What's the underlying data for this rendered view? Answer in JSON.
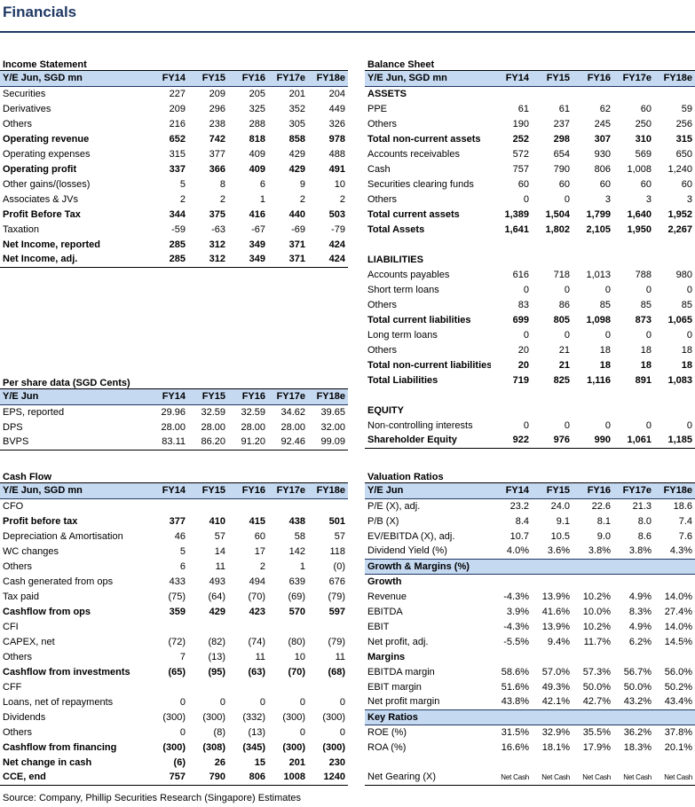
{
  "title": "Financials",
  "income": {
    "title": "Income Statement",
    "header": [
      "Y/E Jun, SGD mn",
      "FY14",
      "FY15",
      "FY16",
      "FY17e",
      "FY18e"
    ],
    "rows": [
      {
        "label": "Securities",
        "values": [
          "227",
          "209",
          "205",
          "201",
          "204"
        ]
      },
      {
        "label": "Derivatives",
        "values": [
          "209",
          "296",
          "325",
          "352",
          "449"
        ]
      },
      {
        "label": "Others",
        "values": [
          "216",
          "238",
          "288",
          "305",
          "326"
        ]
      },
      {
        "label": "Operating revenue",
        "values": [
          "652",
          "742",
          "818",
          "858",
          "978"
        ],
        "bold": true
      },
      {
        "label": "Operating expenses",
        "values": [
          "315",
          "377",
          "409",
          "429",
          "488"
        ]
      },
      {
        "label": "Operating profit",
        "values": [
          "337",
          "366",
          "409",
          "429",
          "491"
        ],
        "bold": true
      },
      {
        "label": "Other gains/(losses)",
        "values": [
          "5",
          "8",
          "6",
          "9",
          "10"
        ]
      },
      {
        "label": "Associates & JVs",
        "values": [
          "2",
          "2",
          "1",
          "2",
          "2"
        ]
      },
      {
        "label": "Profit Before Tax",
        "values": [
          "344",
          "375",
          "416",
          "440",
          "503"
        ],
        "bold": true
      },
      {
        "label": "Taxation",
        "values": [
          "-59",
          "-63",
          "-67",
          "-69",
          "-79"
        ]
      },
      {
        "label": "Net Income, reported",
        "values": [
          "285",
          "312",
          "349",
          "371",
          "424"
        ],
        "bold": true
      },
      {
        "label": "Net Income, adj.",
        "values": [
          "285",
          "312",
          "349",
          "371",
          "424"
        ],
        "bold": true
      }
    ]
  },
  "per_share": {
    "title": "Per share data (SGD Cents)",
    "header": [
      "Y/E Jun",
      "FY14",
      "FY15",
      "FY16",
      "FY17e",
      "FY18e"
    ],
    "rows": [
      {
        "label": "EPS, reported",
        "values": [
          "29.96",
          "32.59",
          "32.59",
          "34.62",
          "39.65"
        ]
      },
      {
        "label": "DPS",
        "values": [
          "28.00",
          "28.00",
          "28.00",
          "28.00",
          "32.00"
        ]
      },
      {
        "label": "BVPS",
        "values": [
          "83.11",
          "86.20",
          "91.20",
          "92.46",
          "99.09"
        ]
      }
    ]
  },
  "cash_flow": {
    "title": "Cash Flow",
    "header": [
      "Y/E Jun, SGD mn",
      "FY14",
      "FY15",
      "FY16",
      "FY17e",
      "FY18e"
    ],
    "rows": [
      {
        "label": "CFO",
        "values": [
          "",
          "",
          "",
          "",
          ""
        ]
      },
      {
        "label": "Profit before tax",
        "values": [
          "377",
          "410",
          "415",
          "438",
          "501"
        ],
        "bold": true
      },
      {
        "label": "Depreciation & Amortisation",
        "values": [
          "46",
          "57",
          "60",
          "58",
          "57"
        ]
      },
      {
        "label": "WC changes",
        "values": [
          "5",
          "14",
          "17",
          "142",
          "118"
        ]
      },
      {
        "label": "Others",
        "values": [
          "6",
          "11",
          "2",
          "1",
          "(0)"
        ]
      },
      {
        "label": "Cash generated from ops",
        "values": [
          "433",
          "493",
          "494",
          "639",
          "676"
        ]
      },
      {
        "label": "Tax paid",
        "values": [
          "(75)",
          "(64)",
          "(70)",
          "(69)",
          "(79)"
        ]
      },
      {
        "label": "Cashflow from ops",
        "values": [
          "359",
          "429",
          "423",
          "570",
          "597"
        ],
        "bold": true
      },
      {
        "label": "CFI",
        "values": [
          "",
          "",
          "",
          "",
          ""
        ]
      },
      {
        "label": "CAPEX, net",
        "values": [
          "(72)",
          "(82)",
          "(74)",
          "(80)",
          "(79)"
        ]
      },
      {
        "label": "Others",
        "values": [
          "7",
          "(13)",
          "11",
          "10",
          "11"
        ]
      },
      {
        "label": "Cashflow from investments",
        "values": [
          "(65)",
          "(95)",
          "(63)",
          "(70)",
          "(68)"
        ],
        "bold": true
      },
      {
        "label": "CFF",
        "values": [
          "",
          "",
          "",
          "",
          ""
        ]
      },
      {
        "label": "Loans, net of repayments",
        "values": [
          "0",
          "0",
          "0",
          "0",
          "0"
        ]
      },
      {
        "label": "Dividends",
        "values": [
          "(300)",
          "(300)",
          "(332)",
          "(300)",
          "(300)"
        ]
      },
      {
        "label": "Others",
        "values": [
          "0",
          "(8)",
          "(13)",
          "0",
          "0"
        ]
      },
      {
        "label": "Cashflow from financing",
        "values": [
          "(300)",
          "(308)",
          "(345)",
          "(300)",
          "(300)"
        ],
        "bold": true
      },
      {
        "label": "Net change in cash",
        "values": [
          "(6)",
          "26",
          "15",
          "201",
          "230"
        ],
        "bold": true
      },
      {
        "label": "CCE, end",
        "values": [
          "757",
          "790",
          "806",
          "1008",
          "1240"
        ],
        "bold": true
      }
    ]
  },
  "balance": {
    "title": "Balance Sheet",
    "header": [
      "Y/E Jun, SGD mn",
      "FY14",
      "FY15",
      "FY16",
      "FY17e",
      "FY18e"
    ],
    "rows": [
      {
        "label": "ASSETS",
        "values": [
          "",
          "",
          "",
          "",
          ""
        ],
        "bold": true
      },
      {
        "label": "PPE",
        "values": [
          "61",
          "61",
          "62",
          "60",
          "59"
        ]
      },
      {
        "label": "Others",
        "values": [
          "190",
          "237",
          "245",
          "250",
          "256"
        ]
      },
      {
        "label": "Total non-current assets",
        "values": [
          "252",
          "298",
          "307",
          "310",
          "315"
        ],
        "bold": true
      },
      {
        "label": "Accounts receivables",
        "values": [
          "572",
          "654",
          "930",
          "569",
          "650"
        ]
      },
      {
        "label": "Cash",
        "values": [
          "757",
          "790",
          "806",
          "1,008",
          "1,240"
        ]
      },
      {
        "label": "Securities clearing funds",
        "values": [
          "60",
          "60",
          "60",
          "60",
          "60"
        ]
      },
      {
        "label": "Others",
        "values": [
          "0",
          "0",
          "3",
          "3",
          "3"
        ]
      },
      {
        "label": "Total current assets",
        "values": [
          "1,389",
          "1,504",
          "1,799",
          "1,640",
          "1,952"
        ],
        "bold": true
      },
      {
        "label": "Total Assets",
        "values": [
          "1,641",
          "1,802",
          "2,105",
          "1,950",
          "2,267"
        ],
        "bold": true
      },
      {
        "label": "",
        "values": [
          "",
          "",
          "",
          "",
          ""
        ]
      },
      {
        "label": "LIABILITIES",
        "values": [
          "",
          "",
          "",
          "",
          ""
        ],
        "bold": true
      },
      {
        "label": "Accounts payables",
        "values": [
          "616",
          "718",
          "1,013",
          "788",
          "980"
        ]
      },
      {
        "label": "Short term loans",
        "values": [
          "0",
          "0",
          "0",
          "0",
          "0"
        ]
      },
      {
        "label": "Others",
        "values": [
          "83",
          "86",
          "85",
          "85",
          "85"
        ]
      },
      {
        "label": "Total current liabilities",
        "values": [
          "699",
          "805",
          "1,098",
          "873",
          "1,065"
        ],
        "bold": true
      },
      {
        "label": "Long term loans",
        "values": [
          "0",
          "0",
          "0",
          "0",
          "0"
        ]
      },
      {
        "label": "Others",
        "values": [
          "20",
          "21",
          "18",
          "18",
          "18"
        ]
      },
      {
        "label": "Total non-current liabilities",
        "values": [
          "20",
          "21",
          "18",
          "18",
          "18"
        ],
        "bold": true
      },
      {
        "label": "Total Liabilities",
        "values": [
          "719",
          "825",
          "1,116",
          "891",
          "1,083"
        ],
        "bold": true
      },
      {
        "label": "",
        "values": [
          "",
          "",
          "",
          "",
          ""
        ]
      },
      {
        "label": "EQUITY",
        "values": [
          "",
          "",
          "",
          "",
          ""
        ],
        "bold": true
      },
      {
        "label": "Non-controlling interests",
        "values": [
          "0",
          "0",
          "0",
          "0",
          "0"
        ]
      },
      {
        "label": "Shareholder Equity",
        "values": [
          "922",
          "976",
          "990",
          "1,061",
          "1,185"
        ],
        "bold": true
      }
    ]
  },
  "valuation": {
    "title": "Valuation Ratios",
    "header": [
      "Y/E Jun",
      "FY14",
      "FY15",
      "FY16",
      "FY17e",
      "FY18e"
    ],
    "rows": [
      {
        "label": "P/E (X), adj.",
        "values": [
          "23.2",
          "24.0",
          "22.6",
          "21.3",
          "18.6"
        ]
      },
      {
        "label": "P/B (X)",
        "values": [
          "8.4",
          "9.1",
          "8.1",
          "8.0",
          "7.4"
        ]
      },
      {
        "label": "EV/EBITDA (X), adj.",
        "values": [
          "10.7",
          "10.5",
          "9.0",
          "8.6",
          "7.6"
        ]
      },
      {
        "label": "Dividend Yield (%)",
        "values": [
          "4.0%",
          "3.6%",
          "3.8%",
          "3.8%",
          "4.3%"
        ]
      }
    ]
  },
  "growth": {
    "title": "Growth & Margins (%)",
    "growth_label": "Growth",
    "growth_rows": [
      {
        "label": "Revenue",
        "values": [
          "-4.3%",
          "13.9%",
          "10.2%",
          "4.9%",
          "14.0%"
        ]
      },
      {
        "label": "EBITDA",
        "values": [
          "3.9%",
          "41.6%",
          "10.0%",
          "8.3%",
          "27.4%"
        ]
      },
      {
        "label": "EBIT",
        "values": [
          "-4.3%",
          "13.9%",
          "10.2%",
          "4.9%",
          "14.0%"
        ]
      },
      {
        "label": "Net profit, adj.",
        "values": [
          "-5.5%",
          "9.4%",
          "11.7%",
          "6.2%",
          "14.5%"
        ]
      }
    ],
    "margins_label": "Margins",
    "margin_rows": [
      {
        "label": "EBITDA margin",
        "values": [
          "58.6%",
          "57.0%",
          "57.3%",
          "56.7%",
          "56.0%"
        ]
      },
      {
        "label": "EBIT margin",
        "values": [
          "51.6%",
          "49.3%",
          "50.0%",
          "50.0%",
          "50.2%"
        ]
      },
      {
        "label": "Net profit margin",
        "values": [
          "43.8%",
          "42.1%",
          "42.7%",
          "43.2%",
          "43.4%"
        ]
      }
    ]
  },
  "key_ratios": {
    "title": "Key Ratios",
    "rows": [
      {
        "label": "ROE (%)",
        "values": [
          "31.5%",
          "32.9%",
          "35.5%",
          "36.2%",
          "37.8%"
        ]
      },
      {
        "label": "ROA (%)",
        "values": [
          "16.6%",
          "18.1%",
          "17.9%",
          "18.3%",
          "20.1%"
        ]
      }
    ],
    "gearing": {
      "label": "Net Gearing (X)",
      "values": [
        "Net Cash",
        "Net Cash",
        "Net Cash",
        "Net Cash",
        "Net Cash"
      ]
    }
  },
  "source": "Source: Company, Phillip Securities Research (Singapore) Estimates"
}
